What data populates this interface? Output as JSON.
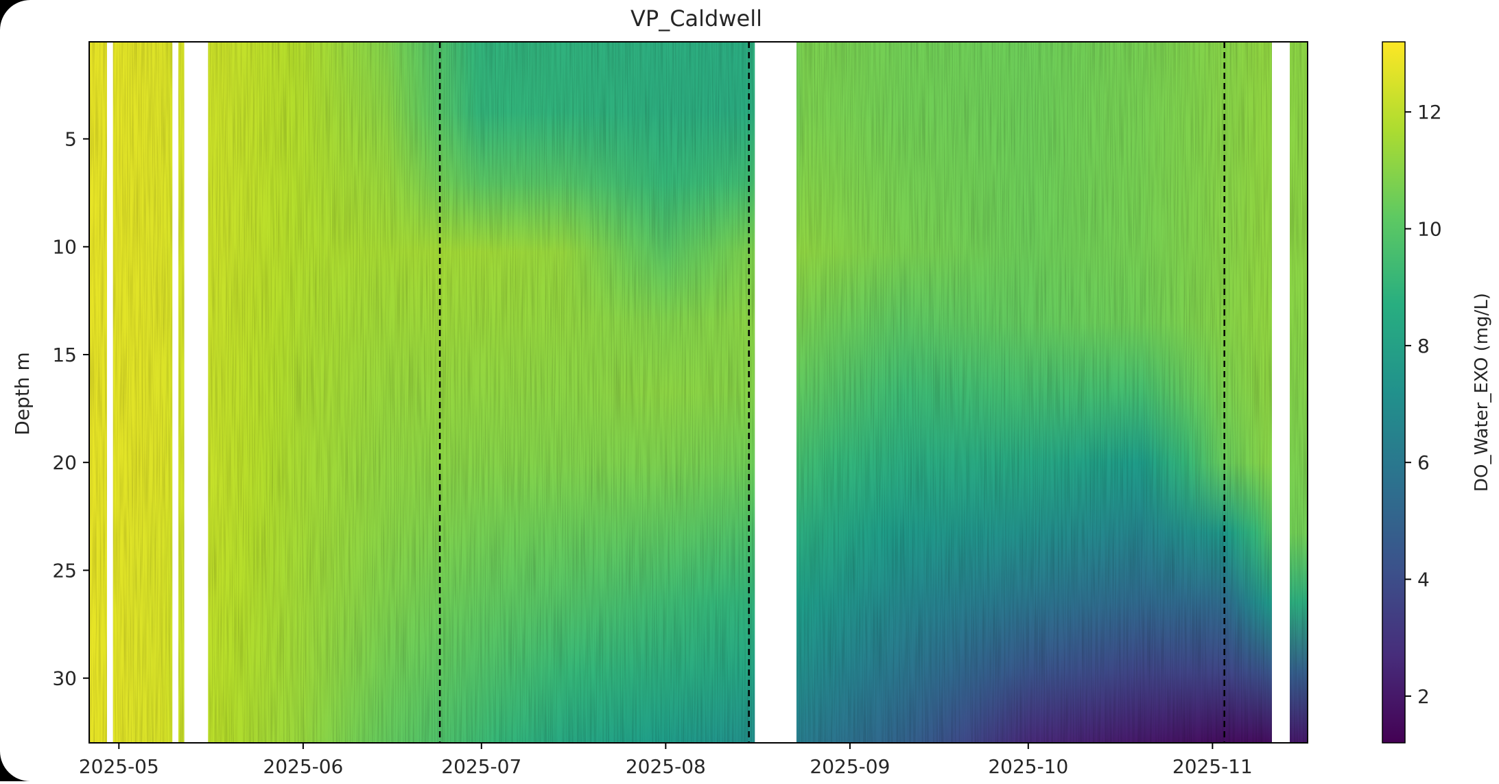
{
  "chart_data": {
    "type": "heatmap",
    "title": "VP_Caldwell",
    "xlabel": "",
    "ylabel": "Depth m",
    "colorbar_label": "DO_Water_EXO (mg/L)",
    "colormap": "viridis",
    "x_range": [
      "2025-04-26",
      "2025-11-17"
    ],
    "y_range": [
      0.5,
      33
    ],
    "y_inverted": true,
    "color_range": [
      1.2,
      13.2
    ],
    "x_ticks": [
      {
        "date": "2025-05-01",
        "label": "2025-05"
      },
      {
        "date": "2025-06-01",
        "label": "2025-06"
      },
      {
        "date": "2025-07-01",
        "label": "2025-07"
      },
      {
        "date": "2025-08-01",
        "label": "2025-08"
      },
      {
        "date": "2025-09-01",
        "label": "2025-09"
      },
      {
        "date": "2025-10-01",
        "label": "2025-10"
      },
      {
        "date": "2025-11-01",
        "label": "2025-11"
      }
    ],
    "y_ticks": [
      5,
      10,
      15,
      20,
      25,
      30
    ],
    "colorbar_ticks": [
      2,
      4,
      6,
      8,
      10,
      12
    ],
    "dashed_lines": [
      "2025-06-24",
      "2025-08-15",
      "2025-11-03"
    ],
    "data_gaps": [
      [
        "2025-04-29",
        "2025-04-30"
      ],
      [
        "2025-05-10",
        "2025-05-11"
      ],
      [
        "2025-05-12",
        "2025-05-16"
      ],
      [
        "2025-08-16",
        "2025-08-23"
      ],
      [
        "2025-11-11",
        "2025-11-14"
      ]
    ],
    "profiles": [
      {
        "date": "2025-04-26",
        "depths": [
          1,
          5,
          10,
          15,
          20,
          25,
          30,
          33
        ],
        "values": [
          12.8,
          12.8,
          12.8,
          12.8,
          12.8,
          12.8,
          12.8,
          12.8
        ]
      },
      {
        "date": "2025-05-08",
        "depths": [
          1,
          5,
          10,
          15,
          20,
          25,
          30,
          33
        ],
        "values": [
          12.6,
          12.6,
          12.6,
          12.6,
          12.6,
          12.5,
          12.5,
          12.5
        ]
      },
      {
        "date": "2025-05-16",
        "depths": [
          1,
          5,
          10,
          15,
          20,
          25,
          30,
          33
        ],
        "values": [
          12.3,
          12.3,
          12.3,
          12.2,
          12.2,
          12.1,
          12.0,
          12.0
        ]
      },
      {
        "date": "2025-06-01",
        "depths": [
          1,
          5,
          10,
          15,
          20,
          25,
          30,
          33
        ],
        "values": [
          11.8,
          11.8,
          11.8,
          11.7,
          11.6,
          11.5,
          11.4,
          11.3
        ]
      },
      {
        "date": "2025-06-15",
        "depths": [
          1,
          5,
          10,
          15,
          20,
          25,
          30,
          33
        ],
        "values": [
          10.9,
          11.2,
          11.6,
          11.4,
          11.2,
          11.0,
          10.6,
          10.3
        ]
      },
      {
        "date": "2025-07-01",
        "depths": [
          1,
          5,
          10,
          15,
          20,
          25,
          30,
          33
        ],
        "values": [
          9.0,
          9.1,
          11.5,
          11.3,
          11.0,
          10.5,
          9.8,
          9.4
        ]
      },
      {
        "date": "2025-07-15",
        "depths": [
          1,
          5,
          10,
          15,
          20,
          25,
          30,
          33
        ],
        "values": [
          8.9,
          9.0,
          11.3,
          11.2,
          10.9,
          10.2,
          9.2,
          8.4
        ]
      },
      {
        "date": "2025-08-01",
        "depths": [
          1,
          5,
          10,
          15,
          20,
          25,
          30,
          33
        ],
        "values": [
          8.7,
          8.7,
          10.0,
          11.3,
          10.8,
          9.8,
          8.6,
          7.8
        ]
      },
      {
        "date": "2025-08-15",
        "depths": [
          1,
          5,
          10,
          15,
          20,
          25,
          30,
          33
        ],
        "values": [
          8.6,
          8.6,
          10.8,
          11.2,
          10.6,
          9.4,
          8.2,
          7.2
        ]
      },
      {
        "date": "2025-08-24",
        "depths": [
          1,
          5,
          10,
          15,
          20,
          25,
          30,
          33
        ],
        "values": [
          10.8,
          10.8,
          11.2,
          10.5,
          9.5,
          8.2,
          7.0,
          6.2
        ]
      },
      {
        "date": "2025-09-10",
        "depths": [
          1,
          5,
          10,
          15,
          20,
          25,
          30,
          33
        ],
        "values": [
          10.6,
          10.6,
          10.8,
          9.8,
          8.6,
          7.2,
          5.8,
          5.0
        ]
      },
      {
        "date": "2025-10-01",
        "depths": [
          1,
          5,
          10,
          15,
          20,
          25,
          30,
          33
        ],
        "values": [
          10.5,
          10.5,
          10.5,
          10.2,
          8.4,
          6.6,
          4.2,
          2.6
        ]
      },
      {
        "date": "2025-10-20",
        "depths": [
          1,
          5,
          10,
          15,
          20,
          25,
          30,
          33
        ],
        "values": [
          10.7,
          10.7,
          10.7,
          10.5,
          7.8,
          6.0,
          3.5,
          2.0
        ]
      },
      {
        "date": "2025-11-03",
        "depths": [
          1,
          5,
          10,
          15,
          20,
          25,
          30,
          33
        ],
        "values": [
          11.0,
          11.0,
          11.0,
          11.0,
          10.4,
          6.2,
          3.5,
          1.6
        ]
      },
      {
        "date": "2025-11-10",
        "depths": [
          1,
          5,
          10,
          15,
          20,
          25,
          30,
          33
        ],
        "values": [
          11.2,
          11.2,
          11.2,
          11.2,
          11.0,
          9.0,
          4.0,
          1.6
        ]
      },
      {
        "date": "2025-11-14",
        "depths": [
          1,
          5,
          10,
          15,
          20,
          25,
          30,
          33
        ],
        "values": [
          11.1,
          11.1,
          11.1,
          11.0,
          10.8,
          10.5,
          4.5,
          2.0
        ]
      }
    ]
  }
}
